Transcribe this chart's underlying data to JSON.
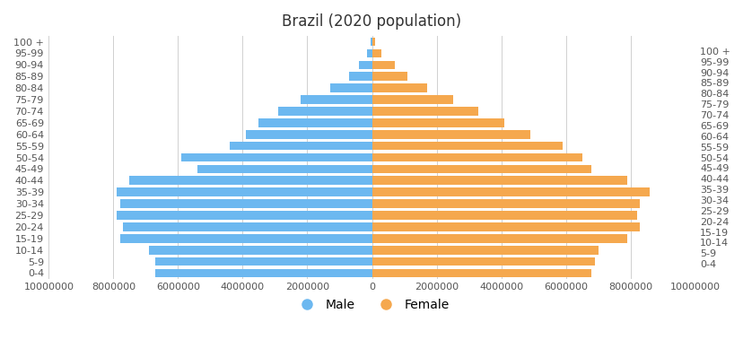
{
  "title": "Brazil (2020 population)",
  "age_groups": [
    "0-4",
    "5-9",
    "10-14",
    "15-19",
    "20-24",
    "25-29",
    "30-34",
    "35-39",
    "40-44",
    "45-49",
    "50-54",
    "55-59",
    "60-64",
    "65-69",
    "70-74",
    "75-79",
    "80-84",
    "85-89",
    "90-94",
    "95-99",
    "100 +"
  ],
  "male": [
    6700000,
    6700000,
    6900000,
    7800000,
    7700000,
    7900000,
    7800000,
    7900000,
    7500000,
    5400000,
    5900000,
    4400000,
    3900000,
    3500000,
    2900000,
    2200000,
    1300000,
    700000,
    400000,
    150000,
    50000
  ],
  "female": [
    6800000,
    6900000,
    7000000,
    7900000,
    8300000,
    8200000,
    8300000,
    8600000,
    7900000,
    6800000,
    6500000,
    5900000,
    4900000,
    4100000,
    3300000,
    2500000,
    1700000,
    1100000,
    700000,
    300000,
    100000
  ],
  "male_color": "#6cb8f0",
  "female_color": "#f5a84e",
  "background_color": "#ffffff",
  "grid_color": "#d0d0d0",
  "xlim": 10000000,
  "bar_height": 0.75,
  "title_fontsize": 12,
  "tick_fontsize": 8,
  "legend_fontsize": 10
}
